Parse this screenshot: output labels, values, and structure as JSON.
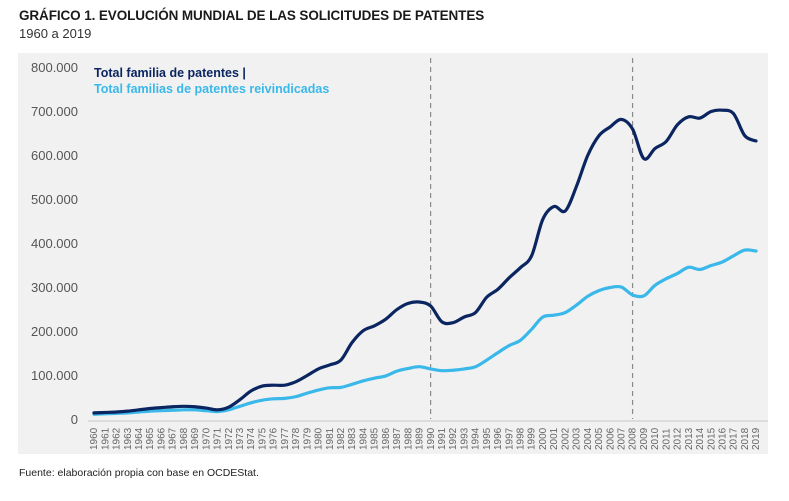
{
  "header": {
    "title": "GRÁFICO 1. EVOLUCIÓN MUNDIAL DE LAS SOLICITUDES DE PATENTES",
    "subtitle": "1960 a 2019"
  },
  "footer": {
    "source": "Fuente: elaboración propia con base en OCDEStat."
  },
  "chart_data": {
    "type": "line",
    "title": "GRÁFICO 1. EVOLUCIÓN MUNDIAL DE LAS SOLICITUDES DE PATENTES",
    "subtitle": "1960 a 2019",
    "xlabel": "",
    "ylabel": "",
    "ylim": [
      0,
      800000
    ],
    "yticks": [
      0,
      100000,
      200000,
      300000,
      400000,
      500000,
      600000,
      700000,
      800000
    ],
    "ytick_labels": [
      "0",
      "100.000",
      "200.000",
      "300.000",
      "400.000",
      "500.000",
      "600.000",
      "700.000",
      "800.000"
    ],
    "grid": false,
    "legend_position": "top-left",
    "x": [
      "1960",
      "1961",
      "1962",
      "1963",
      "1964",
      "1965",
      "1966",
      "1967",
      "1968",
      "1969",
      "1970",
      "1971",
      "1972",
      "1973",
      "1974",
      "1975",
      "1976",
      "1977",
      "1978",
      "1979",
      "1980",
      "1981",
      "1982",
      "1983",
      "1984",
      "1985",
      "1986",
      "1987",
      "1988",
      "1989",
      "1990",
      "1991",
      "1992",
      "1993",
      "1994",
      "1995",
      "1996",
      "1997",
      "1998",
      "1999",
      "2000",
      "2001",
      "2002",
      "2003",
      "2004",
      "2005",
      "2006",
      "2007",
      "2008",
      "2009",
      "2010",
      "2011",
      "2012",
      "2013",
      "2014",
      "2015",
      "2016",
      "2017",
      "2018",
      "2019"
    ],
    "reference_lines": [
      "1990",
      "2008"
    ],
    "series": [
      {
        "name": "Total familia de patentes |",
        "color": "#0b2561",
        "values": [
          15000,
          16000,
          17000,
          19000,
          22000,
          25000,
          27000,
          29000,
          30000,
          29000,
          26000,
          22000,
          28000,
          45000,
          65000,
          76000,
          78000,
          78000,
          86000,
          100000,
          115000,
          124000,
          135000,
          175000,
          202000,
          213000,
          228000,
          250000,
          264000,
          267000,
          258000,
          222000,
          220000,
          233000,
          243000,
          278000,
          296000,
          322000,
          345000,
          372000,
          455000,
          484000,
          474000,
          530000,
          600000,
          645000,
          665000,
          682000,
          660000,
          593000,
          616000,
          632000,
          670000,
          688000,
          685000,
          700000,
          703000,
          695000,
          645000,
          633000
        ]
      },
      {
        "name": "Total familias de patentes reivindicadas",
        "color": "#3ab8ea",
        "values": [
          12000,
          13000,
          14000,
          15000,
          17000,
          19000,
          20000,
          21000,
          22000,
          22000,
          20000,
          18000,
          22000,
          30000,
          38000,
          44000,
          47000,
          48000,
          52000,
          60000,
          67000,
          72000,
          73000,
          80000,
          88000,
          94000,
          99000,
          110000,
          116000,
          120000,
          115000,
          111000,
          112000,
          115000,
          120000,
          135000,
          152000,
          168000,
          180000,
          205000,
          233000,
          237000,
          243000,
          260000,
          280000,
          293000,
          300000,
          301000,
          283000,
          281000,
          305000,
          320000,
          332000,
          346000,
          341000,
          350000,
          358000,
          372000,
          385000,
          383000
        ]
      }
    ]
  }
}
